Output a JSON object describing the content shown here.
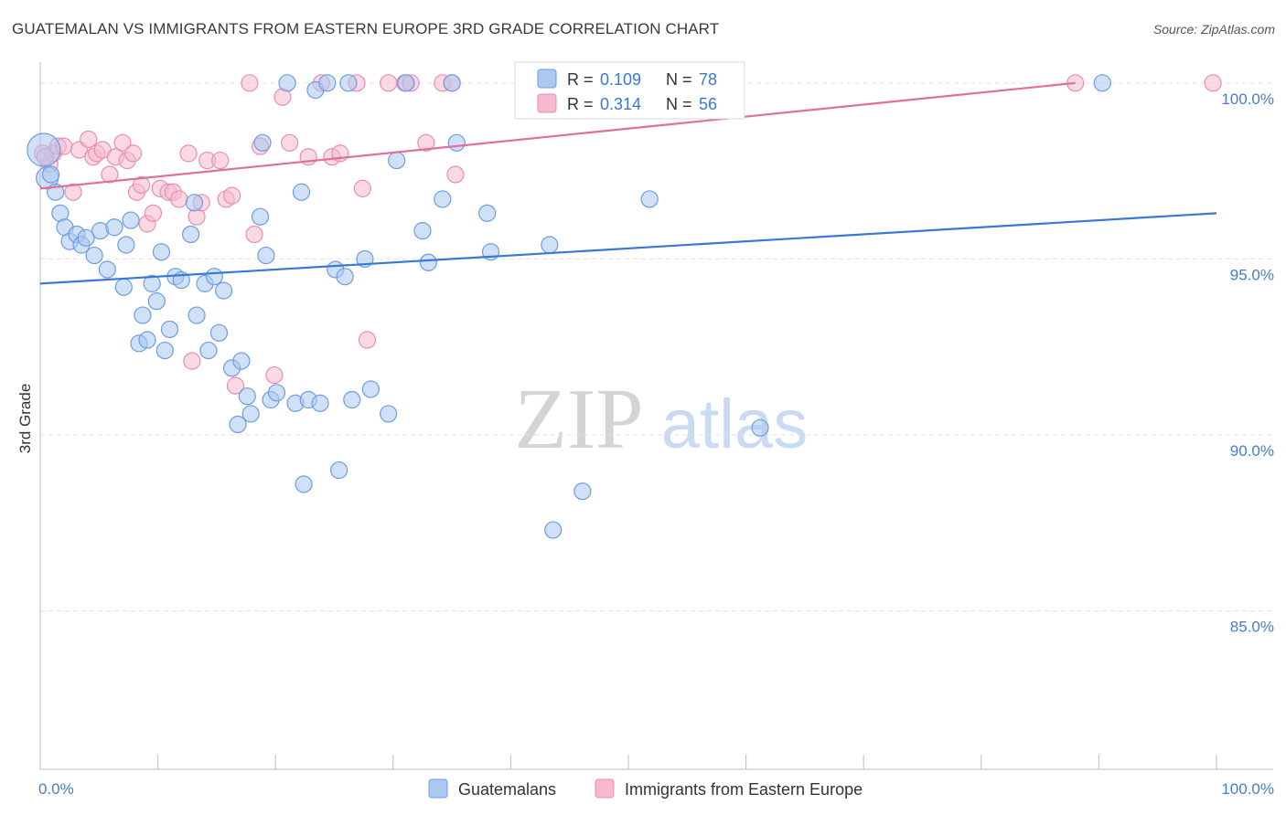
{
  "title": "GUATEMALAN VS IMMIGRANTS FROM EASTERN EUROPE 3RD GRADE CORRELATION CHART",
  "source": "Source: ZipAtlas.com",
  "watermark": {
    "zip": "ZIP",
    "atlas": "atlas"
  },
  "colors": {
    "blue": "#3a78d4",
    "blue_fill": "#aac8f0",
    "pink": "#e0709a",
    "pink_fill": "#f6b9cf",
    "tick_text": "#4a7cc9"
  },
  "legend_stats": [
    {
      "r_label": "R =",
      "r_value": "0.109",
      "n_label": "N =",
      "n_value": "78"
    },
    {
      "r_label": "R =",
      "r_value": "0.314",
      "n_label": "N =",
      "n_value": "56"
    }
  ],
  "chart_data": {
    "type": "scatter",
    "title": "GUATEMALAN VS IMMIGRANTS FROM EASTERN EUROPE 3RD GRADE CORRELATION CHART",
    "xlabel": "",
    "ylabel": "3rd Grade",
    "xlim": [
      0,
      100
    ],
    "ylim": [
      80.5,
      100.8
    ],
    "x_tick_labels": [
      "0.0%",
      "100.0%"
    ],
    "y_ticks": [
      100,
      95,
      90,
      85
    ],
    "y_tick_labels": [
      "100.0%",
      "95.0%",
      "90.0%",
      "85.0%"
    ],
    "grid": true,
    "legend_position": "top-center and bottom",
    "series": [
      {
        "name": "Guatemalans",
        "trend": {
          "x": [
            0,
            100
          ],
          "y": [
            94.3,
            96.3
          ]
        },
        "points": [
          [
            0.3,
            98.1
          ],
          [
            0.6,
            97.3
          ],
          [
            1.3,
            96.9
          ],
          [
            1.7,
            96.3
          ],
          [
            2.1,
            95.9
          ],
          [
            2.5,
            95.5
          ],
          [
            3.1,
            95.7
          ],
          [
            3.5,
            95.4
          ],
          [
            3.9,
            95.6
          ],
          [
            4.6,
            95.1
          ],
          [
            5.1,
            95.8
          ],
          [
            5.7,
            94.7
          ],
          [
            6.3,
            95.9
          ],
          [
            7.1,
            94.2
          ],
          [
            7.3,
            95.4
          ],
          [
            7.7,
            96.1
          ],
          [
            8.4,
            92.6
          ],
          [
            8.7,
            93.4
          ],
          [
            9.1,
            92.7
          ],
          [
            9.5,
            94.3
          ],
          [
            9.9,
            93.8
          ],
          [
            10.3,
            95.2
          ],
          [
            10.6,
            92.4
          ],
          [
            11.0,
            93.0
          ],
          [
            11.5,
            94.5
          ],
          [
            12.0,
            94.4
          ],
          [
            12.8,
            95.7
          ],
          [
            13.1,
            96.6
          ],
          [
            13.3,
            93.4
          ],
          [
            14.0,
            94.3
          ],
          [
            14.3,
            92.4
          ],
          [
            14.8,
            94.5
          ],
          [
            15.2,
            92.9
          ],
          [
            15.6,
            94.1
          ],
          [
            16.3,
            91.9
          ],
          [
            16.8,
            90.3
          ],
          [
            17.1,
            92.1
          ],
          [
            17.6,
            91.1
          ],
          [
            17.9,
            90.6
          ],
          [
            18.7,
            96.2
          ],
          [
            18.9,
            98.3
          ],
          [
            19.2,
            95.1
          ],
          [
            19.6,
            91.0
          ],
          [
            20.1,
            91.2
          ],
          [
            21.0,
            100.0
          ],
          [
            21.7,
            90.9
          ],
          [
            22.2,
            96.9
          ],
          [
            22.4,
            88.6
          ],
          [
            22.8,
            91.0
          ],
          [
            23.4,
            99.8
          ],
          [
            23.8,
            90.9
          ],
          [
            24.4,
            100.0
          ],
          [
            25.1,
            94.7
          ],
          [
            25.4,
            89.0
          ],
          [
            25.9,
            94.5
          ],
          [
            26.2,
            100.0
          ],
          [
            26.5,
            91.0
          ],
          [
            27.6,
            95.0
          ],
          [
            28.1,
            91.3
          ],
          [
            29.6,
            90.6
          ],
          [
            30.3,
            97.8
          ],
          [
            31.1,
            100.0
          ],
          [
            32.5,
            95.8
          ],
          [
            33.0,
            94.9
          ],
          [
            34.2,
            96.7
          ],
          [
            35.0,
            100.0
          ],
          [
            35.4,
            98.3
          ],
          [
            38.0,
            96.3
          ],
          [
            38.3,
            95.2
          ],
          [
            43.3,
            95.4
          ],
          [
            43.6,
            87.3
          ],
          [
            46.1,
            88.4
          ],
          [
            51.8,
            96.7
          ],
          [
            58.3,
            100.0
          ],
          [
            59.1,
            100.0
          ],
          [
            61.2,
            90.2
          ],
          [
            90.3,
            100.0
          ],
          [
            0.9,
            97.4
          ]
        ]
      },
      {
        "name": "Immigrants from Eastern Europe",
        "trend": {
          "x": [
            0,
            88
          ],
          "y": [
            97.0,
            100.0
          ]
        },
        "points": [
          [
            0.2,
            98.0
          ],
          [
            0.8,
            97.7
          ],
          [
            1.1,
            98.0
          ],
          [
            1.5,
            98.2
          ],
          [
            2.0,
            98.2
          ],
          [
            2.8,
            96.9
          ],
          [
            3.3,
            98.1
          ],
          [
            4.1,
            98.4
          ],
          [
            4.5,
            97.9
          ],
          [
            4.8,
            98.0
          ],
          [
            5.3,
            98.1
          ],
          [
            5.9,
            97.4
          ],
          [
            6.4,
            97.9
          ],
          [
            7.0,
            98.3
          ],
          [
            7.4,
            97.8
          ],
          [
            7.9,
            98.0
          ],
          [
            8.2,
            96.9
          ],
          [
            8.6,
            97.1
          ],
          [
            9.1,
            96.0
          ],
          [
            9.6,
            96.3
          ],
          [
            10.2,
            97.0
          ],
          [
            10.9,
            96.9
          ],
          [
            11.3,
            96.9
          ],
          [
            11.8,
            96.7
          ],
          [
            12.6,
            98.0
          ],
          [
            12.9,
            92.1
          ],
          [
            13.3,
            96.2
          ],
          [
            13.7,
            96.6
          ],
          [
            14.2,
            97.8
          ],
          [
            15.3,
            97.8
          ],
          [
            15.8,
            96.7
          ],
          [
            16.3,
            96.8
          ],
          [
            16.6,
            91.4
          ],
          [
            17.8,
            100.0
          ],
          [
            18.2,
            95.7
          ],
          [
            18.7,
            98.2
          ],
          [
            19.9,
            91.7
          ],
          [
            20.6,
            99.6
          ],
          [
            21.2,
            98.3
          ],
          [
            22.8,
            97.9
          ],
          [
            23.9,
            100.0
          ],
          [
            24.8,
            97.9
          ],
          [
            25.5,
            98.0
          ],
          [
            26.9,
            100.0
          ],
          [
            27.4,
            97.0
          ],
          [
            27.8,
            92.7
          ],
          [
            29.6,
            100.0
          ],
          [
            31.0,
            100.0
          ],
          [
            31.5,
            100.0
          ],
          [
            32.8,
            98.3
          ],
          [
            34.2,
            100.0
          ],
          [
            35.0,
            100.0
          ],
          [
            35.3,
            97.4
          ],
          [
            88.0,
            100.0
          ],
          [
            99.7,
            100.0
          ],
          [
            0.4,
            97.9
          ]
        ]
      }
    ]
  }
}
